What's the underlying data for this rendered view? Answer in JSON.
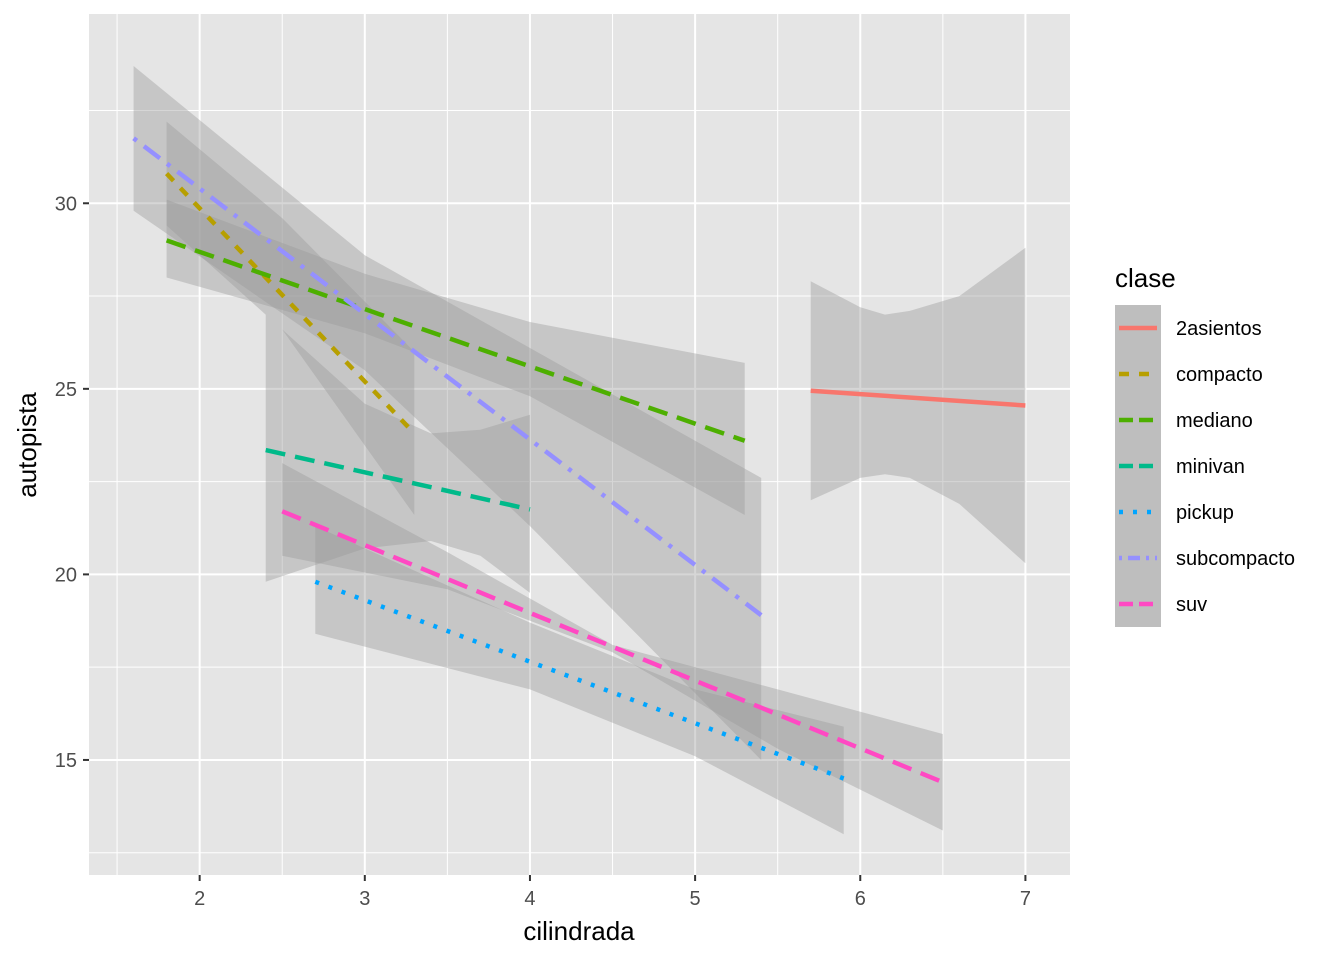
{
  "chart_data": {
    "type": "line",
    "xlabel": "cilindrada",
    "ylabel": "autopista",
    "xlim": [
      1.33,
      7.27
    ],
    "ylim": [
      11.9,
      35.1
    ],
    "x_ticks": [
      2,
      3,
      4,
      5,
      6,
      7
    ],
    "y_ticks": [
      15,
      20,
      25,
      30
    ],
    "grid": true,
    "legend": {
      "title": "clase",
      "position": "right"
    },
    "panel_background": "#e5e5e5",
    "ribbon_color": "#999999",
    "series": [
      {
        "name": "2asientos",
        "color": "#F8766D",
        "linetype": "solid",
        "x": [
          5.7,
          7.0
        ],
        "y": [
          24.95,
          24.55
        ],
        "ribbon_x": [
          5.7,
          6.0,
          6.15,
          6.3,
          6.6,
          7.0
        ],
        "ribbon_lower": [
          22.0,
          22.6,
          22.7,
          22.6,
          21.9,
          20.3
        ],
        "ribbon_upper": [
          27.9,
          27.2,
          27.0,
          27.1,
          27.5,
          28.8
        ]
      },
      {
        "name": "compacto",
        "color": "#B79F00",
        "linetype": "dashed",
        "x": [
          1.8,
          3.3
        ],
        "y": [
          30.8,
          23.8
        ],
        "ribbon_x": [
          1.8,
          2.5,
          3.3
        ],
        "ribbon_lower": [
          29.4,
          26.6,
          21.6
        ],
        "ribbon_upper": [
          32.2,
          29.6,
          26.0
        ]
      },
      {
        "name": "mediano",
        "color": "#4DAF00",
        "linetype": "longdash",
        "x": [
          1.8,
          5.3
        ],
        "y": [
          29.0,
          23.6
        ],
        "ribbon_x": [
          1.8,
          3.0,
          4.0,
          5.3
        ],
        "ribbon_lower": [
          28.0,
          26.5,
          24.8,
          21.6
        ],
        "ribbon_upper": [
          30.1,
          28.1,
          26.8,
          25.7
        ]
      },
      {
        "name": "minivan",
        "color": "#00BA8A",
        "linetype": "longdash",
        "x": [
          2.4,
          4.0
        ],
        "y": [
          23.35,
          21.75
        ],
        "ribbon_x": [
          2.4,
          3.0,
          3.4,
          3.7,
          4.0
        ],
        "ribbon_lower": [
          19.8,
          20.7,
          20.9,
          20.5,
          19.5
        ],
        "ribbon_upper": [
          27.0,
          24.6,
          23.8,
          23.9,
          24.3
        ]
      },
      {
        "name": "pickup",
        "color": "#00A5FF",
        "linetype": "dotted",
        "x": [
          2.7,
          5.9
        ],
        "y": [
          19.8,
          14.5
        ],
        "ribbon_x": [
          2.7,
          4.0,
          5.0,
          5.9
        ],
        "ribbon_lower": [
          18.4,
          16.9,
          15.1,
          13.0
        ],
        "ribbon_upper": [
          21.3,
          18.7,
          16.9,
          15.9
        ]
      },
      {
        "name": "subcompacto",
        "color": "#9590FF",
        "linetype": "dotdash",
        "x": [
          1.6,
          5.4
        ],
        "y": [
          31.75,
          18.9
        ],
        "ribbon_x": [
          1.6,
          3.0,
          4.0,
          5.4
        ],
        "ribbon_lower": [
          29.8,
          25.5,
          21.3,
          15.0
        ],
        "ribbon_upper": [
          33.7,
          28.6,
          26.1,
          22.6
        ]
      },
      {
        "name": "suv",
        "color": "#FF49C3",
        "linetype": "longdash",
        "x": [
          2.5,
          6.5
        ],
        "y": [
          21.7,
          14.4
        ],
        "ribbon_x": [
          2.5,
          3.5,
          4.5,
          5.5,
          6.5
        ],
        "ribbon_lower": [
          20.5,
          19.6,
          17.9,
          15.3,
          13.1
        ],
        "ribbon_upper": [
          23.0,
          20.6,
          18.1,
          16.9,
          15.7
        ]
      }
    ]
  }
}
